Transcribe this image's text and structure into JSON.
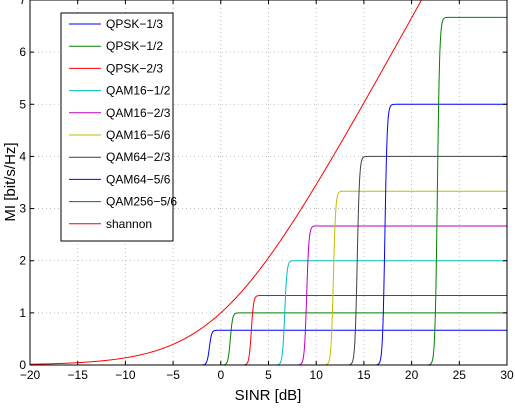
{
  "chart_data": {
    "type": "line",
    "title": "",
    "xlabel": "SINR [dB]",
    "ylabel": "MI [bit/s/Hz]",
    "xlim": [
      -20,
      30
    ],
    "ylim": [
      0,
      7
    ],
    "xticks": [
      -20,
      -15,
      -10,
      -5,
      0,
      5,
      10,
      15,
      20,
      25,
      30
    ],
    "yticks": [
      0,
      1,
      2,
      3,
      4,
      5,
      6,
      7
    ],
    "grid": true,
    "legend_position": "top-left",
    "series": [
      {
        "name": "QPSK−1/3",
        "color": "#0000ff",
        "max_mi": 0.667,
        "threshold_db": -1.2
      },
      {
        "name": "QPSK−1/2",
        "color": "#008000",
        "max_mi": 1.0,
        "threshold_db": 1.0
      },
      {
        "name": "QPSK−2/3",
        "color": "#ff0000",
        "max_mi": 1.333,
        "threshold_db": 3.2
      },
      {
        "name": "QAM16−1/2",
        "color": "#00bfbf",
        "max_mi": 2.0,
        "threshold_db": 6.7
      },
      {
        "name": "QAM16−2/3",
        "color": "#bf00bf",
        "max_mi": 2.667,
        "threshold_db": 9.0
      },
      {
        "name": "QAM16−5/6",
        "color": "#bfbf00",
        "max_mi": 3.333,
        "threshold_db": 11.8
      },
      {
        "name": "QAM64−2/3",
        "color": "#404040",
        "max_mi": 4.0,
        "threshold_db": 14.3
      },
      {
        "name": "QAM64−5/6",
        "color": "#0000ff",
        "max_mi": 5.0,
        "threshold_db": 17.2
      },
      {
        "name": "QAM256−5/6",
        "color": "#008000",
        "max_mi": 6.667,
        "threshold_db": 22.7
      },
      {
        "name": "shannon",
        "color": "#ff0000",
        "formula": "log2(1+10^(SINR/10))"
      }
    ]
  }
}
